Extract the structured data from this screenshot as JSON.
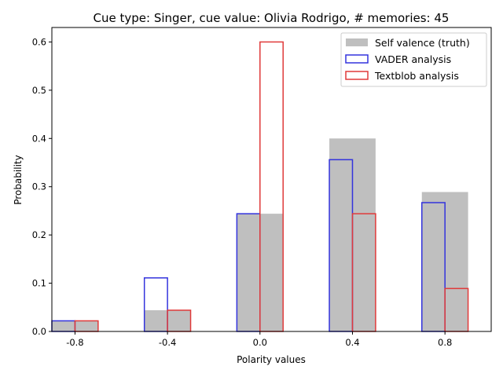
{
  "chart_data": {
    "type": "bar",
    "title": "Cue type: Singer, cue value: Olivia Rodrigo, # memories: 45",
    "xlabel": "Polarity values",
    "ylabel": "Probability",
    "categories": [
      "-0.8",
      "-0.4",
      "0.0",
      "0.4",
      "0.8"
    ],
    "x": [
      -0.8,
      -0.4,
      0.0,
      0.4,
      0.8
    ],
    "xlim": [
      -0.9,
      1.0
    ],
    "ylim": [
      0,
      0.63
    ],
    "yticks": [
      "0.0",
      "0.1",
      "0.2",
      "0.3",
      "0.4",
      "0.5",
      "0.6"
    ],
    "ytick_values": [
      0,
      0.1,
      0.2,
      0.3,
      0.4,
      0.5,
      0.6
    ],
    "legend_position": "top-right",
    "grid": false,
    "series": [
      {
        "name": "Self valence (truth)",
        "style": "filled",
        "color": "#bfbfbf",
        "values": [
          0.022,
          0.044,
          0.244,
          0.4,
          0.289
        ]
      },
      {
        "name": "VADER analysis",
        "style": "outline",
        "color": "#3333dd",
        "values": [
          0.022,
          0.111,
          0.244,
          0.356,
          0.267
        ]
      },
      {
        "name": "Textblob analysis",
        "style": "outline",
        "color": "#e03a3a",
        "values": [
          0.022,
          0.044,
          0.6,
          0.244,
          0.089
        ]
      }
    ]
  }
}
